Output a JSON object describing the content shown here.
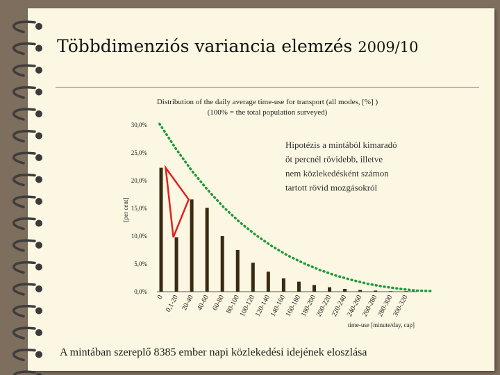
{
  "slide": {
    "title": "Többdimenziós variancia elemzés",
    "title_year": "2009/10",
    "caption": "A mintában szereplő 8385 ember napi közlekedési idejének eloszlása",
    "background_color": "#fbf7e2",
    "frame_color": "#7d6e5d"
  },
  "chart_data": {
    "type": "bar",
    "title": "Distribution of the daily average time-use for transport (all modes, [%] )",
    "subtitle": "(100% = the total population surveyed)",
    "xlabel": "time-use [minute/day, cap]",
    "ylabel": "[per cent]",
    "ylim": [
      0,
      30
    ],
    "y_ticks": [
      "0,0%",
      "5,0%",
      "10,0%",
      "15,0%",
      "20,0%",
      "25,0%",
      "30,0%"
    ],
    "y_tick_values": [
      0,
      5,
      10,
      15,
      20,
      25,
      30
    ],
    "categories": [
      "0",
      "0,1-20",
      "20-40",
      "40-60",
      "60-80",
      "80-100",
      "100-120",
      "120-140",
      "140-160",
      "160-180",
      "180-200",
      "200-220",
      "220-240",
      "240-260",
      "260-280",
      "280-300",
      "300-320"
    ],
    "values": [
      22.3,
      9.8,
      16.6,
      15.1,
      10.0,
      7.5,
      5.2,
      3.6,
      2.4,
      1.8,
      1.2,
      0.8,
      0.5,
      0.3,
      0.2,
      0.1,
      0.1
    ],
    "bar_color": "#3a2a12",
    "fit_curve": {
      "color": "#1f9a3c",
      "style": "dotted",
      "values": [
        30.2,
        25.8,
        21.8,
        18.3,
        15.2,
        12.5,
        10.2,
        8.2,
        6.5,
        5.1,
        3.9,
        2.9,
        2.1,
        1.4,
        0.9,
        0.5,
        0.2,
        0.1
      ]
    },
    "triangle_color": "#e02020",
    "annotation": "Hipotézis a mintából kimaradó öt percnél rövidebb, illetve nem közlekedésként számon tartott rövid mozgásokról",
    "grid": false,
    "legend": "none"
  }
}
